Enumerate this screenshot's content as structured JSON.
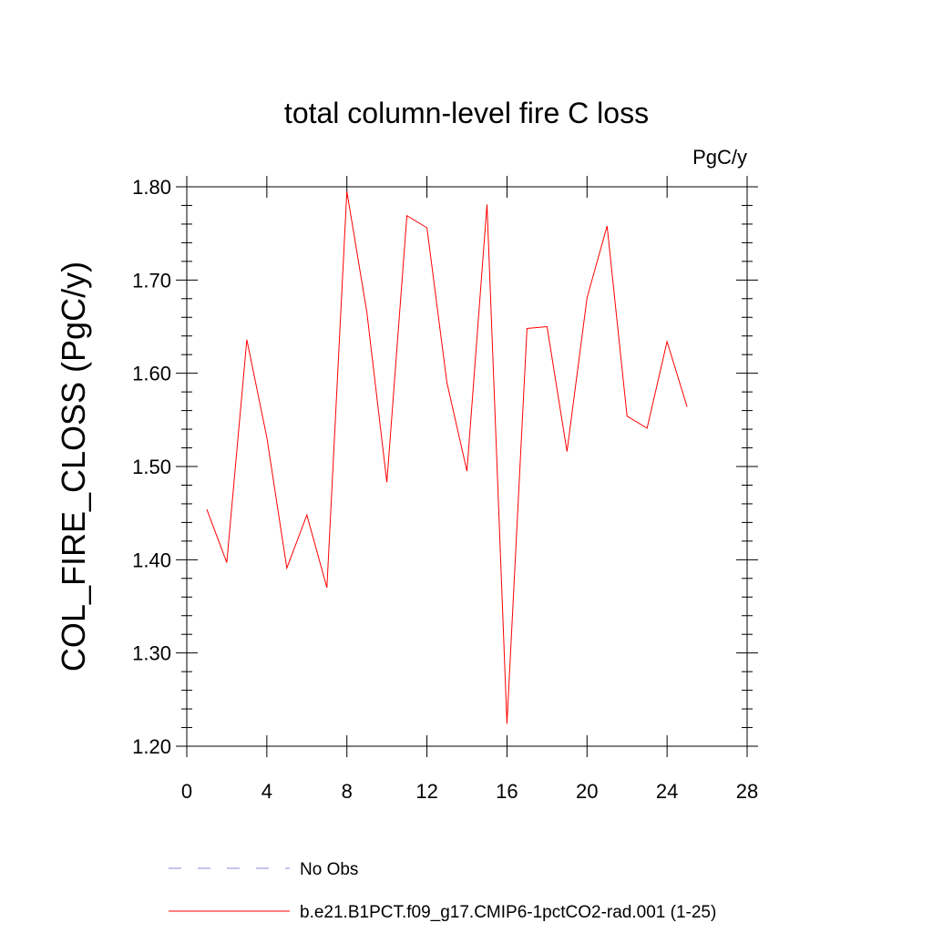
{
  "chart_data": {
    "type": "line",
    "title": "total column-level fire C loss",
    "units_label": "PgC/y",
    "ylabel": "COL_FIRE_CLOSS  (PgC/y)",
    "xlabel": "",
    "xlim": [
      0,
      28
    ],
    "ylim": [
      1.2,
      1.8
    ],
    "x_ticks": [
      0,
      4,
      8,
      12,
      16,
      20,
      24,
      28
    ],
    "x_tick_labels": [
      "0",
      "4",
      "8",
      "12",
      "16",
      "20",
      "24",
      "28"
    ],
    "y_ticks": [
      1.2,
      1.3,
      1.4,
      1.5,
      1.6,
      1.7,
      1.8
    ],
    "y_tick_labels": [
      "1.20",
      "1.30",
      "1.40",
      "1.50",
      "1.60",
      "1.70",
      "1.80"
    ],
    "grid": false,
    "legend_position": "bottom",
    "series": [
      {
        "name": "b.e21.B1PCT.f09_g17.CMIP6-1pctCO2-rad.001 (1-25)",
        "color": "#ff0000",
        "style": "solid",
        "x": [
          1,
          2,
          3,
          4,
          5,
          6,
          7,
          8,
          9,
          10,
          11,
          12,
          13,
          14,
          15,
          16,
          17,
          18,
          19,
          20,
          21,
          22,
          23,
          24,
          25
        ],
        "y": [
          1.454,
          1.397,
          1.636,
          1.531,
          1.391,
          1.448,
          1.37,
          1.795,
          1.665,
          1.483,
          1.769,
          1.756,
          1.59,
          1.495,
          1.781,
          1.224,
          1.648,
          1.65,
          1.516,
          1.681,
          1.758,
          1.554,
          1.541,
          1.634,
          1.564
        ]
      }
    ],
    "legend": [
      {
        "label": "No Obs",
        "color": "#8888dd",
        "style": "dashed"
      },
      {
        "label": "b.e21.B1PCT.f09_g17.CMIP6-1pctCO2-rad.001 (1-25)",
        "color": "#ff0000",
        "style": "solid"
      }
    ]
  }
}
